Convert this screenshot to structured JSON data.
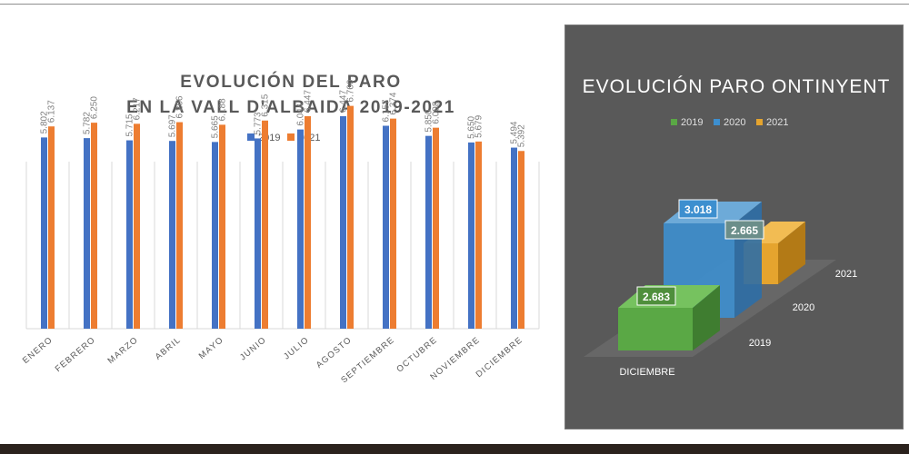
{
  "chart_data": [
    {
      "type": "bar",
      "title": "EVOLUCIÓN DEL PARO",
      "subtitle": "EN LA VALL D'ALBAIDA 2019-2021",
      "categories": [
        "ENERO",
        "FEBRERO",
        "MARZO",
        "ABRIL",
        "MAYO",
        "JUNIO",
        "JULIO",
        "AGOSTO",
        "SEPTIEMBRE",
        "OCTUBRE",
        "NOVIEMBRE",
        "DICIEMBRE"
      ],
      "series": [
        {
          "name": "2019",
          "color": "#4472c4",
          "values": [
            5802,
            5782,
            5715,
            5697,
            5665,
            5773,
            6044,
            6447,
            6157,
            5850,
            5650,
            5494
          ],
          "labels": [
            "5.802",
            "5.782",
            "5.715",
            "5.697",
            "5.665",
            "5.773",
            "6.044",
            "6.447",
            "6.157",
            "5.850",
            "5.650",
            "5.494"
          ]
        },
        {
          "name": "2021",
          "color": "#ed7d31",
          "values": [
            6137,
            6250,
            6217,
            6266,
            6188,
            6315,
            6447,
            6760,
            6374,
            6098,
            5679,
            5392
          ],
          "labels": [
            "6.137",
            "6.250",
            "6.217",
            "6.266",
            "6.188",
            "6.315",
            "6.447",
            "6.760",
            "6.374",
            "6.098",
            "5.679",
            "5.392"
          ]
        }
      ],
      "ylim": [
        0,
        10000
      ],
      "legend": "top-center",
      "grid": "vertical-category-lines"
    },
    {
      "type": "bar-3d",
      "title": "EVOLUCIÓN PARO ONTINYENT",
      "categories": [
        "DICIEMBRE"
      ],
      "series": [
        {
          "name": "2019",
          "color": "#5aa845",
          "values": [
            2683
          ],
          "labels": [
            "2.683"
          ]
        },
        {
          "name": "2020",
          "color": "#3d8fcf",
          "values": [
            3018
          ],
          "labels": [
            "3.018"
          ]
        },
        {
          "name": "2021",
          "color": "#e5a42e",
          "values": [
            2665
          ],
          "labels": [
            "2.665"
          ]
        }
      ],
      "depth_labels": [
        "2019",
        "2020",
        "2021"
      ],
      "legend": "top-center"
    }
  ]
}
